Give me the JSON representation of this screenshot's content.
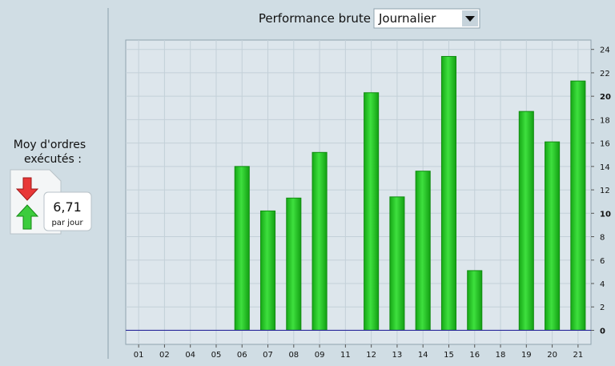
{
  "sidebar": {
    "label_lines": [
      "Moy d'ordres",
      "exécutés :"
    ],
    "value": "6,71",
    "unit": "par jour"
  },
  "toolbar": {
    "label": "Performance brute",
    "select": "Journalier"
  },
  "chart_data": {
    "type": "bar",
    "categories": [
      "01",
      "02",
      "04",
      "05",
      "06",
      "07",
      "08",
      "09",
      "11",
      "12",
      "13",
      "14",
      "15",
      "16",
      "18",
      "19",
      "20",
      "21"
    ],
    "values": [
      0,
      0,
      0,
      0,
      14.0,
      10.2,
      11.3,
      15.2,
      0,
      20.3,
      11.4,
      13.6,
      23.4,
      5.1,
      0,
      18.7,
      16.1,
      21.3
    ],
    "color": "#22c422",
    "ylim": [
      -1.2,
      24.8
    ],
    "yticks": [
      0,
      2,
      4,
      6,
      8,
      10,
      12,
      14,
      16,
      18,
      20,
      22,
      24
    ],
    "grid": true
  }
}
